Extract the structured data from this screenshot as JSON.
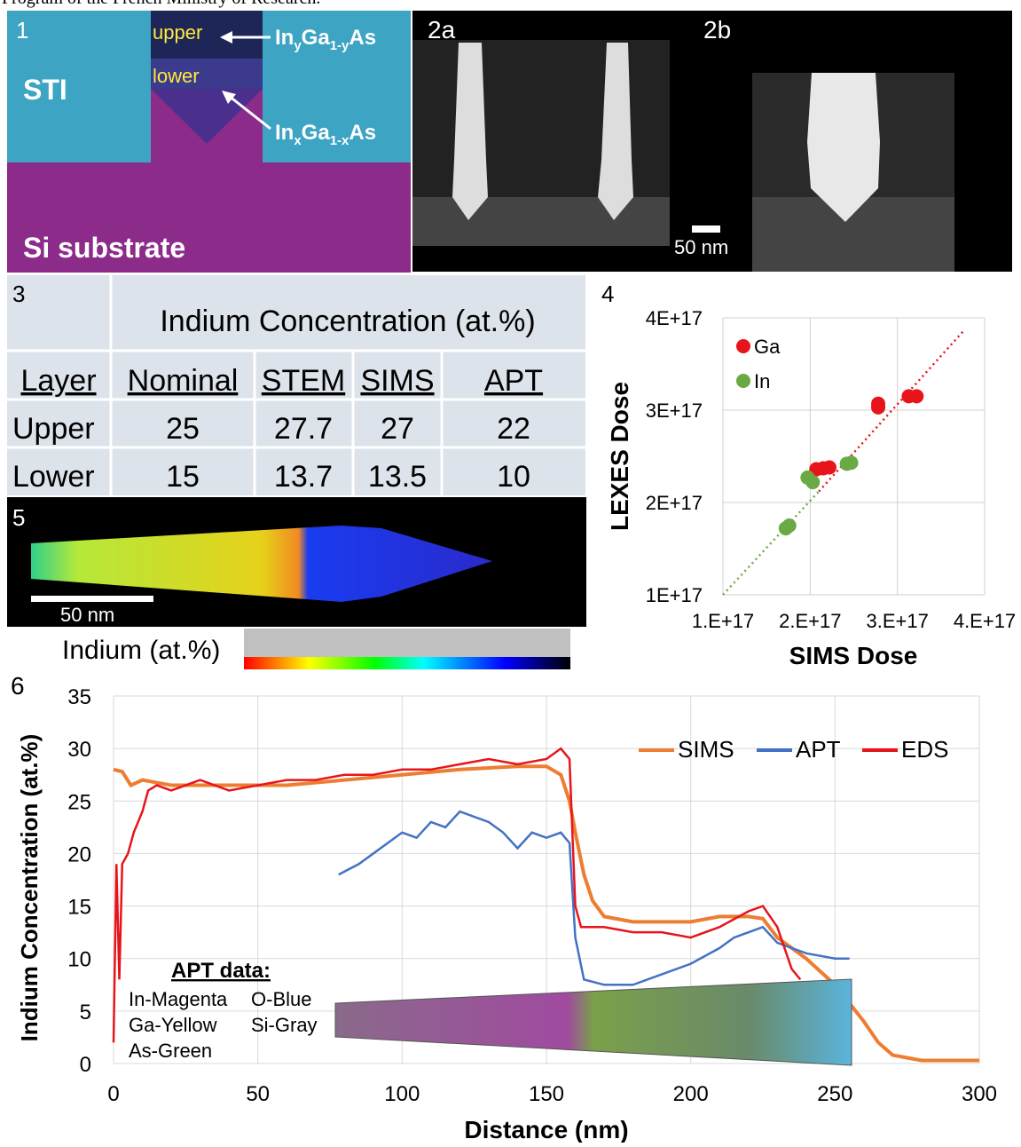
{
  "header_fragment": "Program of the French Ministry of Research.",
  "panel1": {
    "label": "1",
    "sti": "STI",
    "substrate": "Si substrate",
    "upper": "upper",
    "lower": "lower",
    "formula_upper": [
      "In",
      "y",
      "Ga",
      "1-y",
      "As"
    ],
    "formula_lower": [
      "In",
      "x",
      "Ga",
      "1-x",
      "As"
    ]
  },
  "panel2": {
    "labels": [
      "2a",
      "2b"
    ],
    "scale_bar": "50 nm"
  },
  "table3": {
    "label": "3",
    "title": "Indium Concentration (at.%)",
    "header": [
      "Layer",
      "Nominal",
      "STEM",
      "SIMS",
      "APT"
    ],
    "rows": [
      [
        "Upper",
        25,
        27.7,
        27,
        22
      ],
      [
        "Lower",
        15,
        13.7,
        13.5,
        10
      ]
    ]
  },
  "panel5": {
    "label": "5",
    "scale_bar": "50 nm",
    "colorbar_title": "Indium (at.%)"
  },
  "chart_data": [
    {
      "type": "scatter",
      "label": "4",
      "xlabel": "SIMS Dose",
      "ylabel": "LEXES Dose",
      "grid": true,
      "xlim": [
        1e+17,
        4e+17
      ],
      "xticks": [
        {
          "value": 1e+17,
          "label": "1.E+17"
        },
        {
          "value": 2e+17,
          "label": "2.E+17"
        },
        {
          "value": 3e+17,
          "label": "3.E+17"
        },
        {
          "value": 4e+17,
          "label": "4.E+17"
        }
      ],
      "ylim": [
        1e+17,
        4e+17
      ],
      "yticks": [
        {
          "value": 1e+17,
          "label": "1E+17"
        },
        {
          "value": 2e+17,
          "label": "2E+17"
        },
        {
          "value": 3e+17,
          "label": "3E+17"
        },
        {
          "value": 4e+17,
          "label": "4E+17"
        }
      ],
      "series": [
        {
          "name": "Ga",
          "color": "#e8141b",
          "x": [
            2.07e+17,
            2.15e+17,
            2.22e+17,
            2.78e+17,
            2.78e+17,
            3.13e+17,
            3.22e+17
          ],
          "values": [
            2.36e+17,
            2.37e+17,
            2.38e+17,
            3.03e+17,
            3.07e+17,
            3.15e+17,
            3.15e+17
          ]
        },
        {
          "name": "In",
          "color": "#6aaa45",
          "x": [
            1.72e+17,
            1.76e+17,
            1.97e+17,
            2.03e+17,
            2.42e+17,
            2.47e+17
          ],
          "values": [
            1.72e+17,
            1.75e+17,
            2.27e+17,
            2.22e+17,
            2.42e+17,
            2.43e+17
          ]
        }
      ],
      "trend_lines": [
        {
          "color": "#6aaa45",
          "x": [
            1e+17,
            2.1e+17
          ],
          "values": [
            1e+17,
            2.12e+17
          ]
        },
        {
          "color": "#e8141b",
          "x": [
            2.1e+17,
            3.76e+17
          ],
          "values": [
            2.12e+17,
            3.86e+17
          ]
        }
      ]
    },
    {
      "type": "line",
      "label": "6",
      "xlabel": "Distance (nm)",
      "ylabel": "Indium Concentration (at.%)",
      "grid": true,
      "xlim": [
        0,
        300
      ],
      "xticks": [
        0,
        50,
        100,
        150,
        200,
        250,
        300
      ],
      "ylim": [
        0,
        35
      ],
      "yticks": [
        0,
        5,
        10,
        15,
        20,
        25,
        30,
        35
      ],
      "annotations": {
        "title": "APT data:",
        "items": [
          "In-Magenta",
          "O-Blue",
          "Ga-Yellow",
          "Si-Gray",
          "As-Green"
        ]
      },
      "series": [
        {
          "name": "SIMS",
          "color": "#ed7d31",
          "x": [
            0,
            3,
            6,
            10,
            20,
            40,
            60,
            80,
            100,
            120,
            140,
            150,
            155,
            158,
            160,
            163,
            166,
            170,
            180,
            200,
            210,
            220,
            225,
            230,
            240,
            250,
            260,
            265,
            270,
            280,
            300
          ],
          "values": [
            28,
            27.8,
            26.5,
            27,
            26.5,
            26.5,
            26.5,
            27,
            27.5,
            28,
            28.3,
            28.3,
            27.5,
            25,
            22,
            18,
            15.5,
            14,
            13.5,
            13.5,
            14,
            14,
            13.8,
            12,
            10,
            7.5,
            4,
            2,
            0.8,
            0.3,
            0.3
          ]
        },
        {
          "name": "APT",
          "color": "#4472c4",
          "x": [
            78,
            85,
            90,
            95,
            100,
            105,
            110,
            115,
            120,
            125,
            130,
            135,
            140,
            145,
            150,
            155,
            158,
            160,
            163,
            170,
            180,
            190,
            200,
            210,
            215,
            220,
            225,
            230,
            240,
            250,
            255
          ],
          "values": [
            18,
            19,
            20,
            21,
            22,
            21.5,
            23,
            22.5,
            24,
            23.5,
            23,
            22,
            20.5,
            22,
            21.5,
            22,
            21,
            12,
            8,
            7.5,
            7.5,
            8.5,
            9.5,
            11,
            12,
            12.5,
            13,
            11.5,
            10.5,
            10,
            10
          ]
        },
        {
          "name": "EDS",
          "color": "#e8141b",
          "x": [
            0,
            1,
            2,
            3,
            5,
            7,
            10,
            12,
            15,
            20,
            30,
            40,
            50,
            60,
            70,
            80,
            90,
            100,
            110,
            120,
            130,
            140,
            150,
            155,
            158,
            160,
            162,
            170,
            180,
            190,
            200,
            210,
            220,
            225,
            230,
            235,
            238
          ],
          "values": [
            2,
            19,
            8,
            19,
            20,
            22,
            24,
            26,
            26.5,
            26,
            27,
            26,
            26.5,
            27,
            27,
            27.5,
            27.5,
            28,
            28,
            28.5,
            29,
            28.5,
            29,
            30,
            29,
            15,
            13,
            13,
            12.5,
            12.5,
            12,
            13,
            14.5,
            15,
            13,
            9,
            8
          ]
        }
      ]
    }
  ]
}
